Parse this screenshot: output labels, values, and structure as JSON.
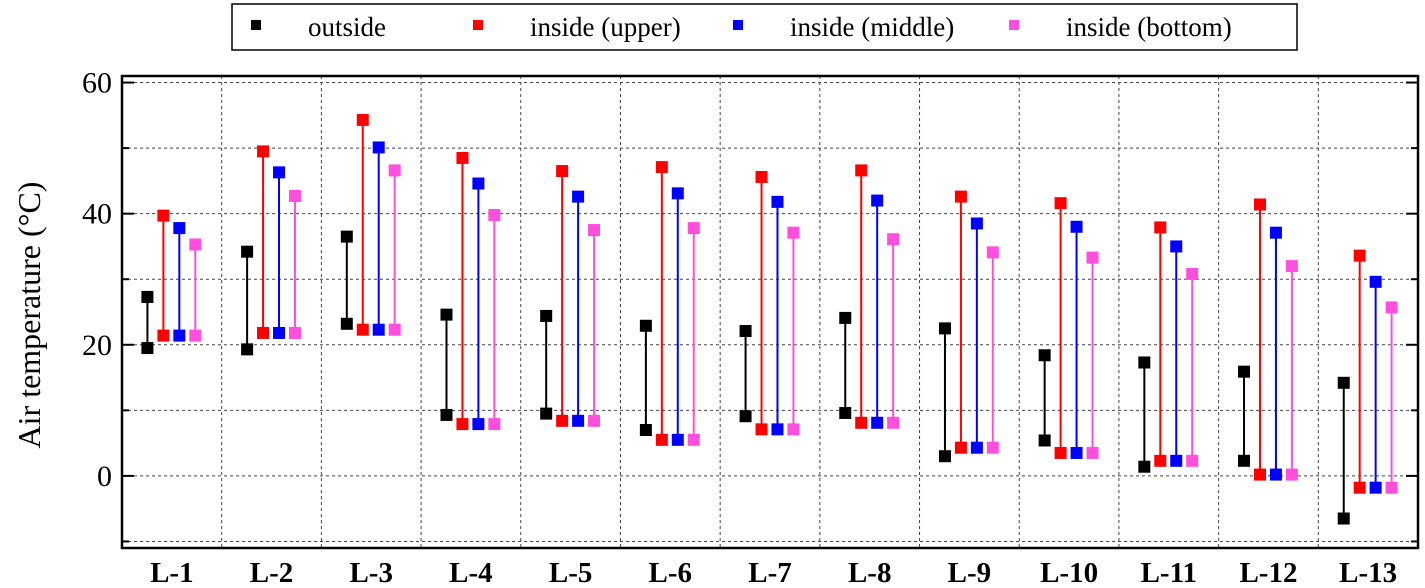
{
  "chart_data": {
    "type": "range",
    "ylabel": "Air temperature  (°C)",
    "ylim": [
      -11,
      61
    ],
    "yticks": [
      0,
      20,
      40,
      60
    ],
    "grid": true,
    "legend_position": "top",
    "categories": [
      "L-1",
      "L-2",
      "L-3",
      "L-4",
      "L-5",
      "L-6",
      "L-7",
      "L-8",
      "L-9",
      "L-10",
      "L-11",
      "L-12",
      "L-13"
    ],
    "series": [
      {
        "name": "outside",
        "color": "#000000",
        "min": [
          19.5,
          19.3,
          23.2,
          9.3,
          9.5,
          7.0,
          9.1,
          9.6,
          3.0,
          5.4,
          1.4,
          2.3,
          -6.5
        ],
        "max": [
          27.3,
          34.2,
          36.5,
          24.6,
          24.4,
          22.9,
          22.1,
          24.1,
          22.5,
          18.4,
          17.3,
          15.9,
          14.2
        ]
      },
      {
        "name": "inside (upper)",
        "color": "#ff0000",
        "min": [
          21.4,
          21.8,
          22.3,
          7.9,
          8.4,
          5.5,
          7.1,
          8.1,
          4.3,
          3.5,
          2.3,
          0.2,
          -1.8
        ],
        "max": [
          39.7,
          49.5,
          54.3,
          48.5,
          46.5,
          47.1,
          45.6,
          46.6,
          42.6,
          41.6,
          37.9,
          41.4,
          33.6
        ]
      },
      {
        "name": "inside (middle)",
        "color": "#0000ff",
        "min": [
          21.4,
          21.8,
          22.3,
          7.9,
          8.4,
          5.5,
          7.1,
          8.1,
          4.3,
          3.5,
          2.3,
          0.2,
          -1.8
        ],
        "max": [
          37.8,
          46.3,
          50.1,
          44.6,
          42.6,
          43.1,
          41.8,
          42.0,
          38.5,
          38.0,
          35.0,
          37.1,
          29.6
        ]
      },
      {
        "name": "inside (bottom)",
        "color": "#ff4fdc",
        "min": [
          21.4,
          21.8,
          22.3,
          7.9,
          8.4,
          5.5,
          7.1,
          8.1,
          4.3,
          3.5,
          2.3,
          0.2,
          -1.8
        ],
        "max": [
          35.3,
          42.7,
          46.6,
          39.8,
          37.5,
          37.8,
          37.1,
          36.1,
          34.1,
          33.3,
          30.8,
          32.0,
          25.7
        ]
      }
    ]
  }
}
